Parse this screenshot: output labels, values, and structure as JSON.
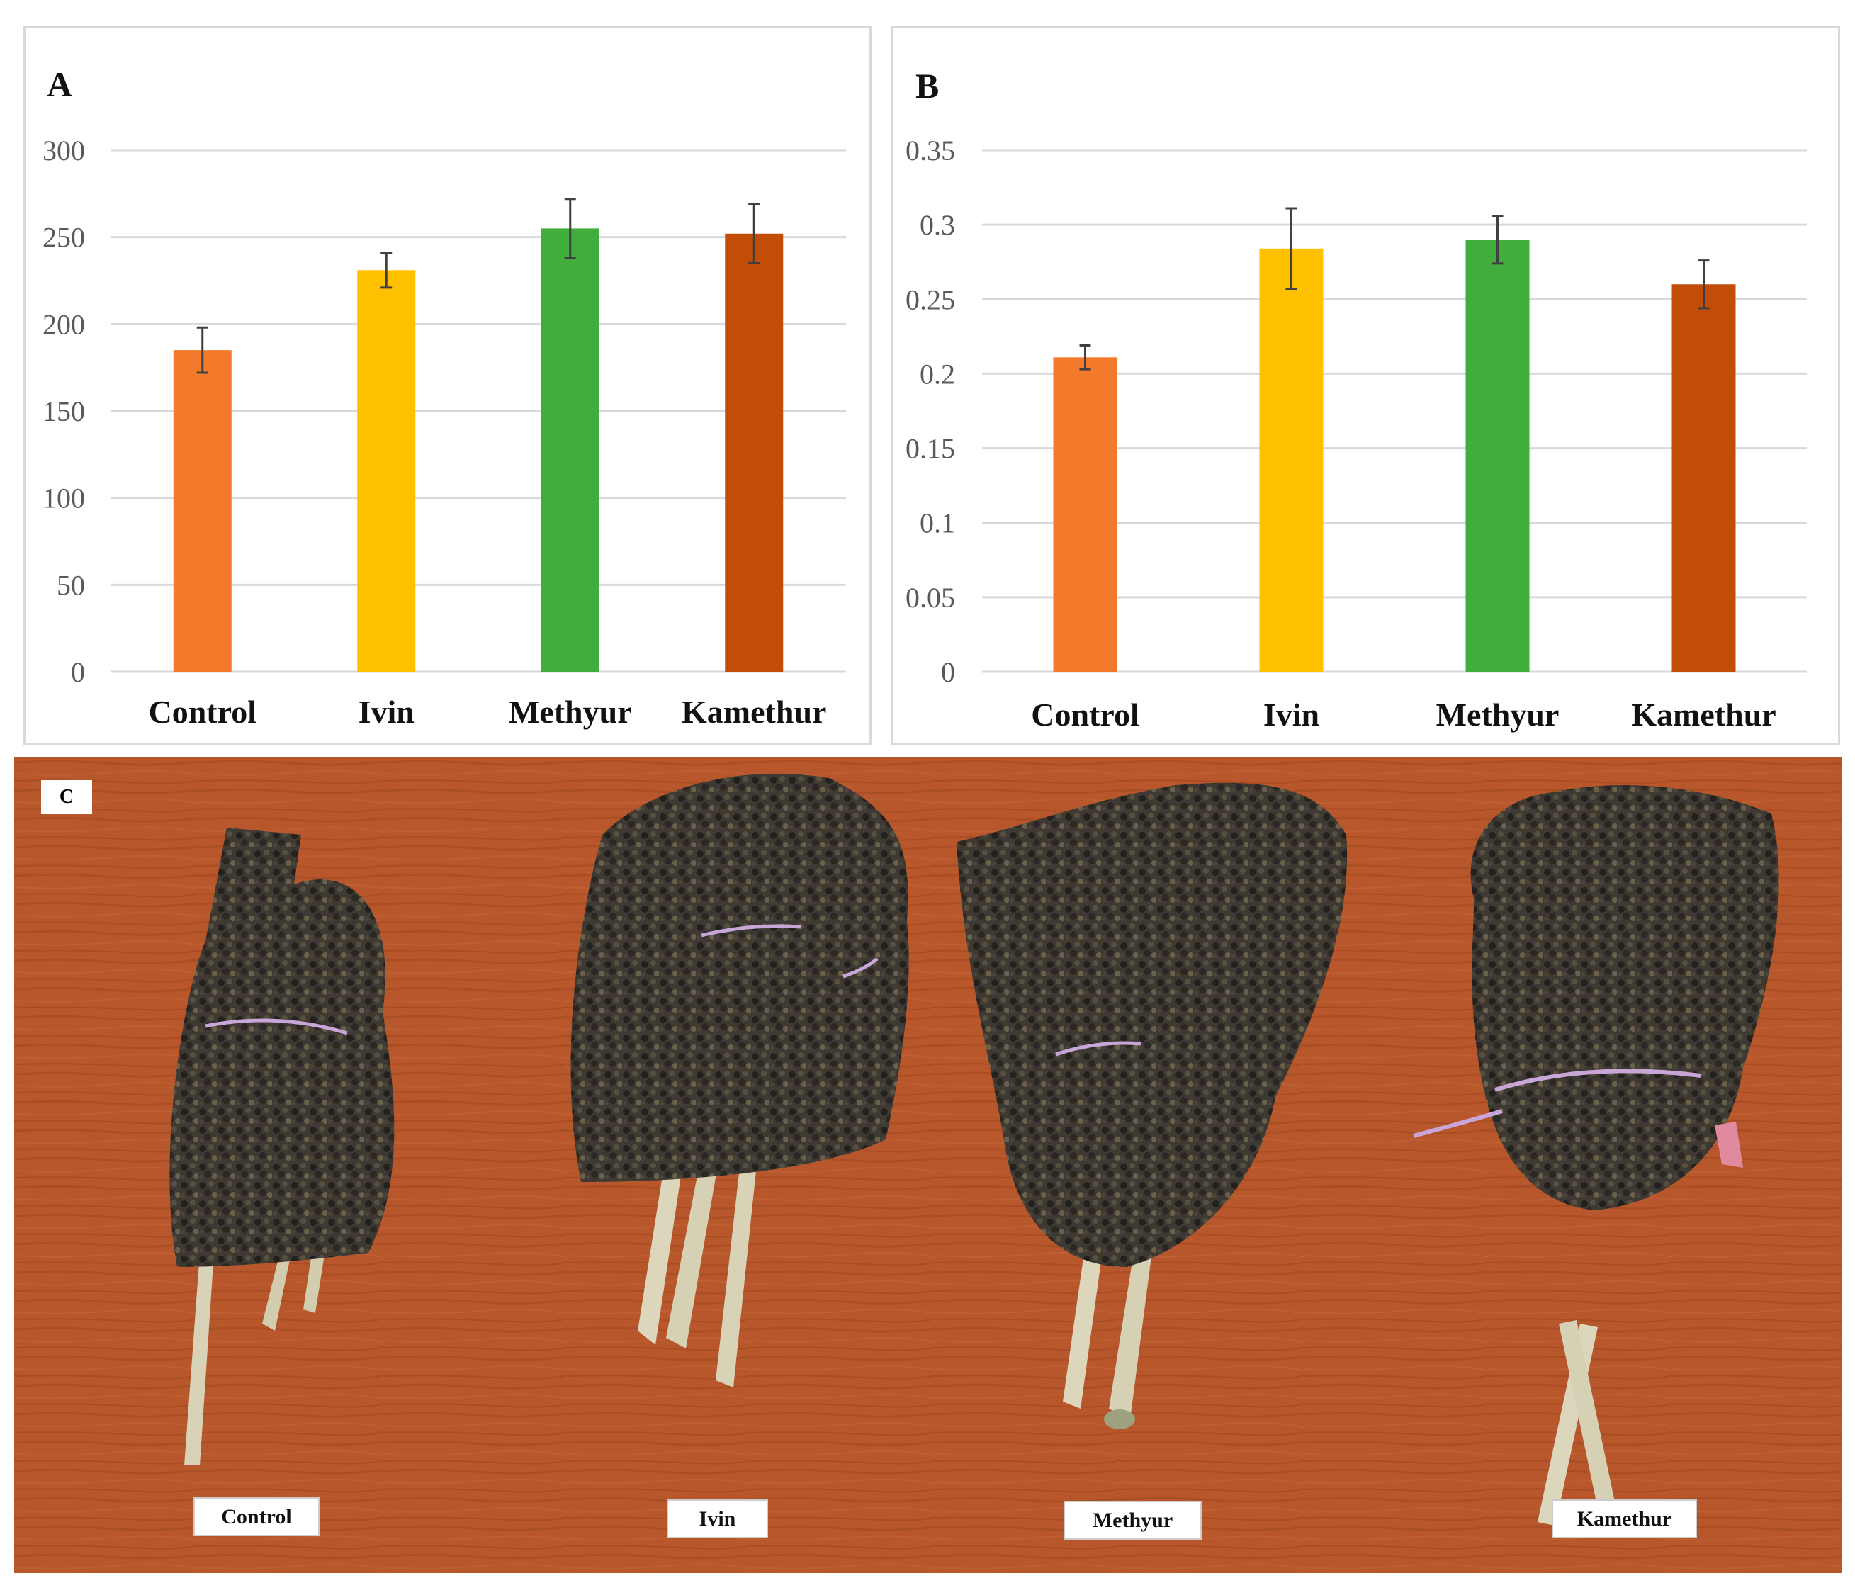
{
  "chart_data": [
    {
      "panel": "A",
      "type": "bar",
      "categories": [
        "Control",
        "Ivin",
        "Methyur",
        "Kamethur"
      ],
      "values": [
        185,
        231,
        255,
        252
      ],
      "errors": [
        13,
        10,
        17,
        17
      ],
      "colors": [
        "#f47a2b",
        "#ffc000",
        "#40ad3d",
        "#c14d06"
      ],
      "ylim": [
        0,
        300
      ],
      "yticks": [
        "0",
        "50",
        "100",
        "150",
        "200",
        "250",
        "300"
      ],
      "ytick_values": [
        0,
        50,
        100,
        150,
        200,
        250,
        300
      ],
      "grid": true,
      "xlabel": "",
      "ylabel": ""
    },
    {
      "panel": "B",
      "type": "bar",
      "categories": [
        "Control",
        "Ivin",
        "Methyur",
        "Kamethur"
      ],
      "values": [
        0.211,
        0.284,
        0.29,
        0.26
      ],
      "errors": [
        0.008,
        0.027,
        0.016,
        0.016
      ],
      "colors": [
        "#f47a2b",
        "#ffc000",
        "#40ad3d",
        "#c14d06"
      ],
      "ylim": [
        0,
        0.35
      ],
      "yticks": [
        "0",
        "0.05",
        "0.1",
        "0.15",
        "0.2",
        "0.25",
        "0.3",
        "0.35"
      ],
      "ytick_values": [
        0,
        0.05,
        0.1,
        0.15,
        0.2,
        0.25,
        0.3,
        0.35
      ],
      "grid": true,
      "xlabel": "",
      "ylabel": ""
    }
  ],
  "photo": {
    "letter": "C",
    "labels": [
      "Control",
      "Ivin",
      "Methyur",
      "Kamethur"
    ]
  }
}
